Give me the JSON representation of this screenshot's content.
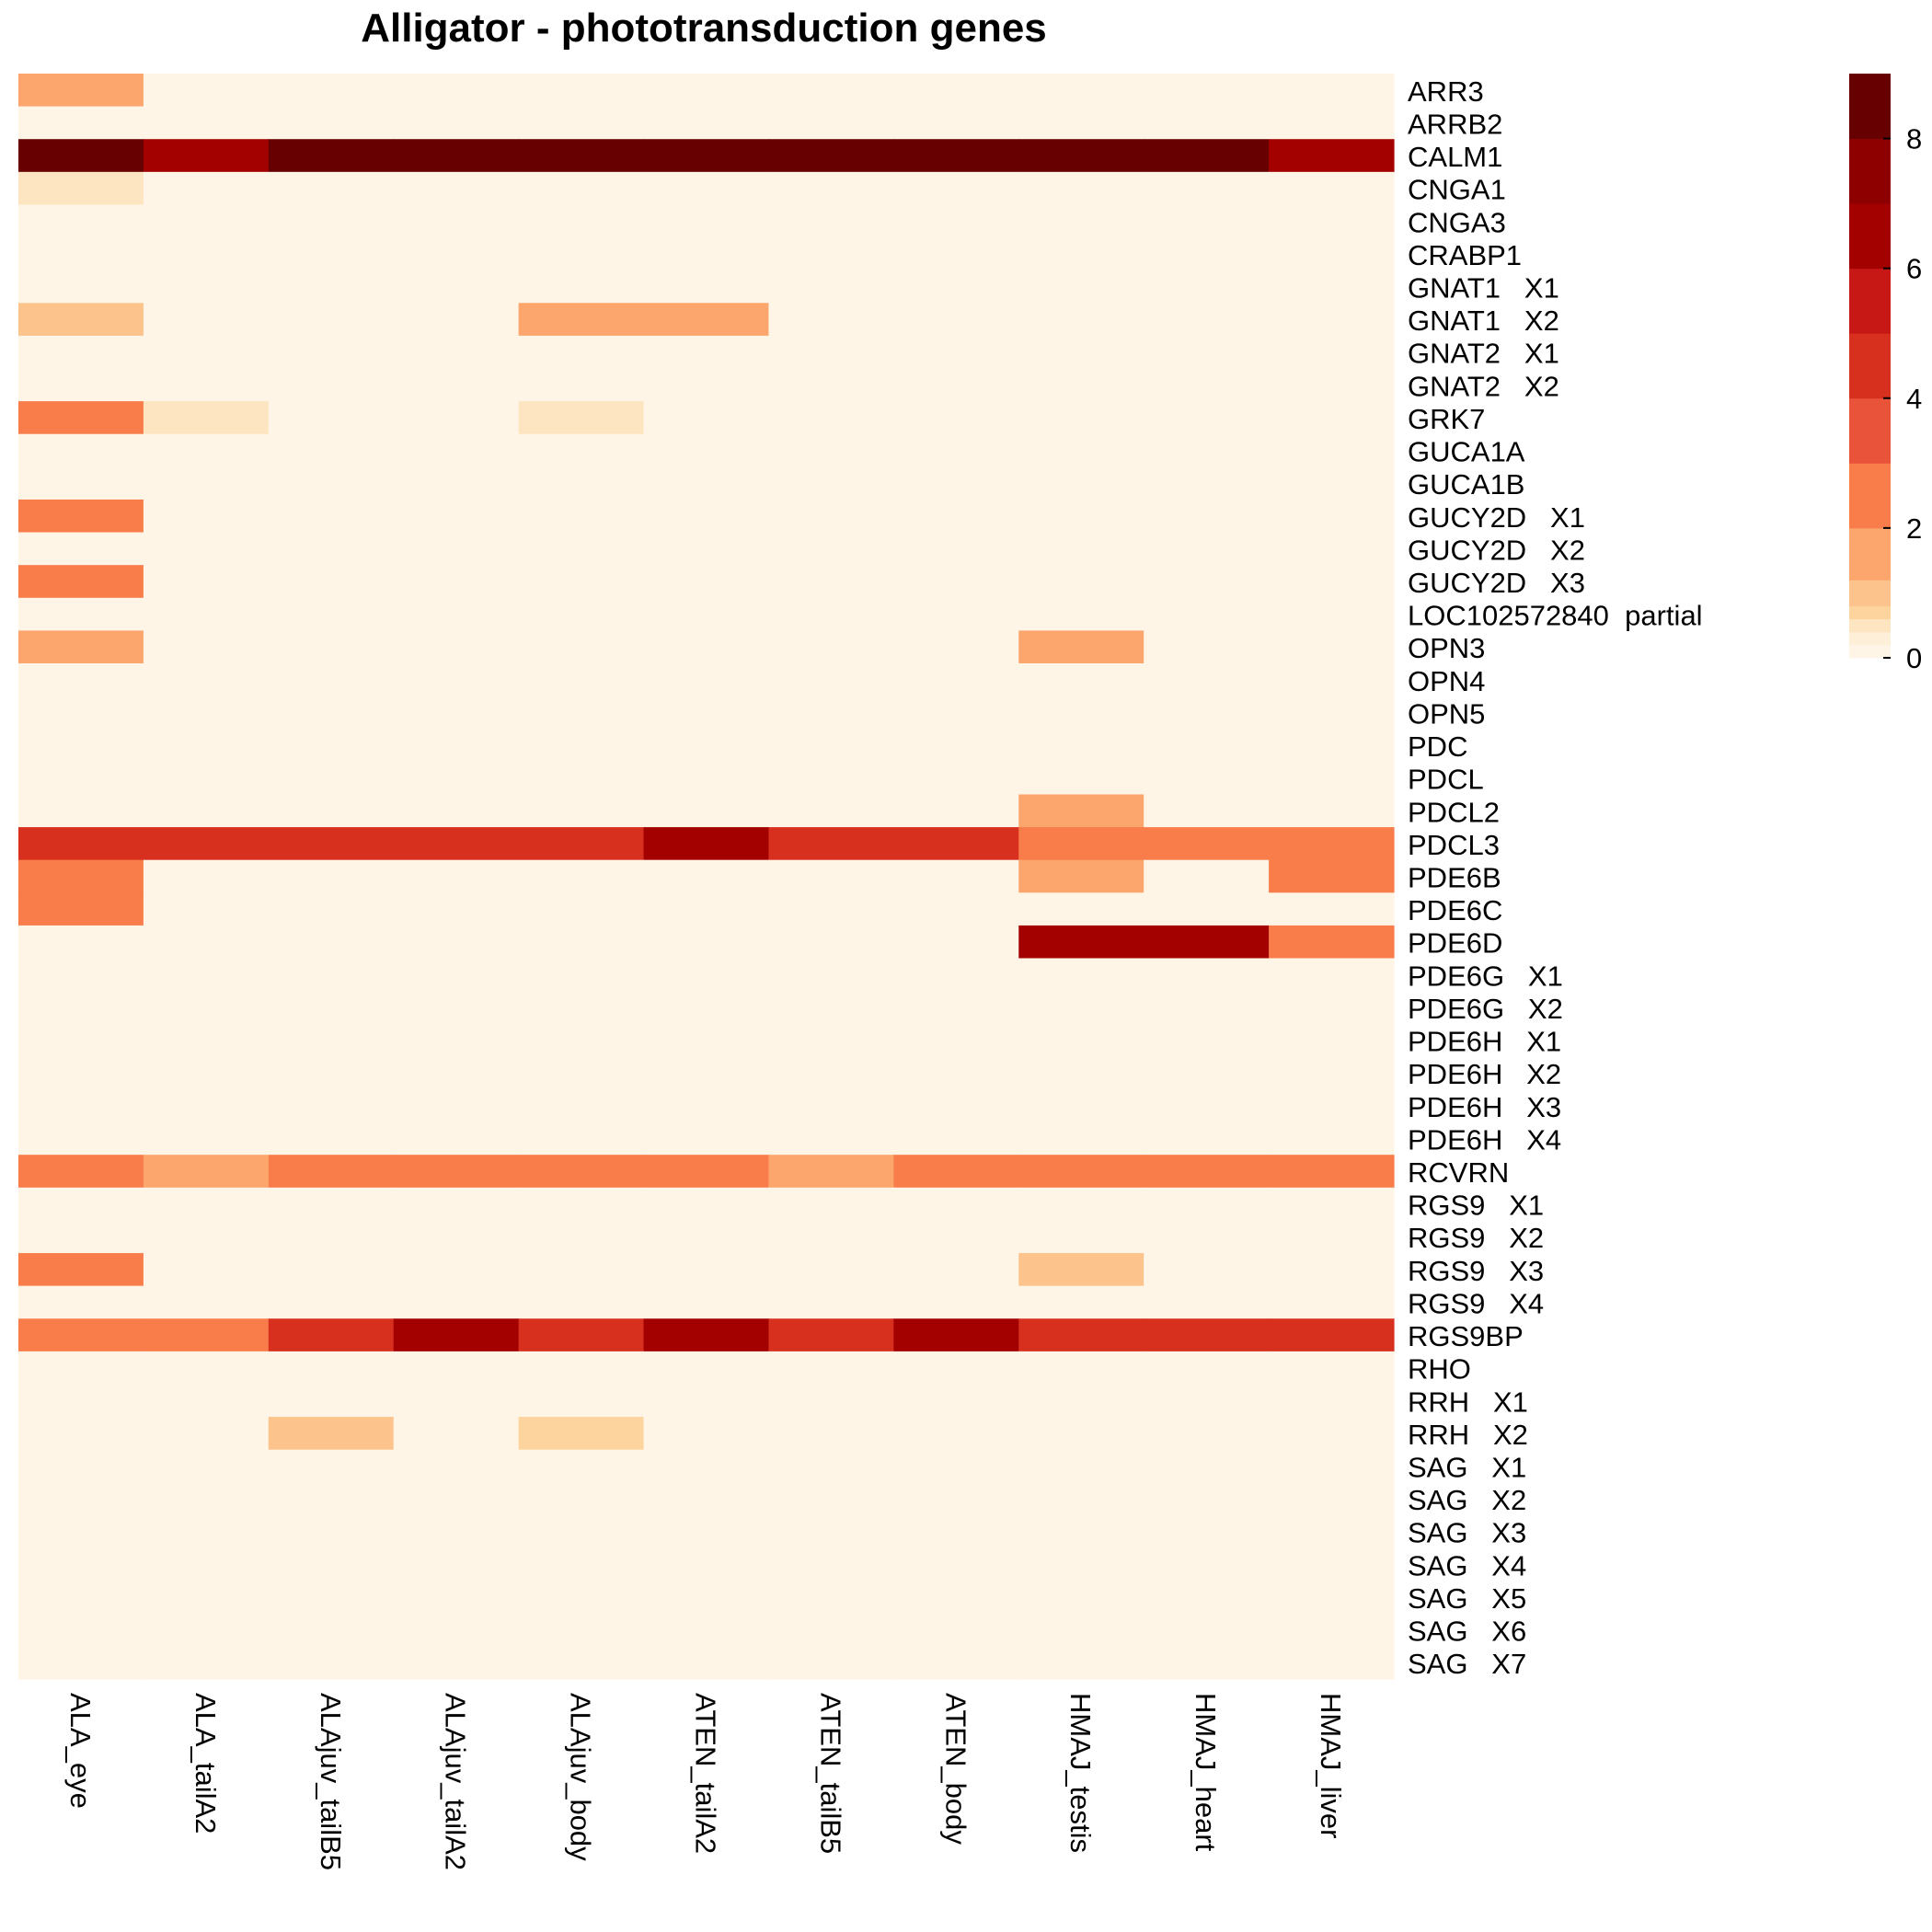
{
  "chart_data": {
    "type": "heatmap",
    "title": "Alligator - phototransduction genes",
    "columns": [
      "ALA_eye",
      "ALA_tailA2",
      "ALAjuv_tailB5",
      "ALAjuv_tailA2",
      "ALAjuv_body",
      "ATEN_tailA2",
      "ATEN_tailB5",
      "ATEN_body",
      "HMAJ_testis",
      "HMAJ_heart",
      "HMAJ_liver"
    ],
    "rows": [
      "ARR3",
      "ARRB2",
      "CALM1",
      "CNGA1",
      "CNGA3",
      "CRABP1",
      "GNAT1   X1",
      "GNAT1   X2",
      "GNAT2   X1",
      "GNAT2   X2",
      "GRK7",
      "GUCA1A",
      "GUCA1B",
      "GUCY2D   X1",
      "GUCY2D   X2",
      "GUCY2D   X3",
      "LOC102572840  partial",
      "OPN3",
      "OPN4",
      "OPN5",
      "PDC",
      "PDCL",
      "PDCL2",
      "PDCL3",
      "PDE6B",
      "PDE6C",
      "PDE6D",
      "PDE6G   X1",
      "PDE6G   X2",
      "PDE6H   X1",
      "PDE6H   X2",
      "PDE6H   X3",
      "PDE6H   X4",
      "RCVRN",
      "RGS9   X1",
      "RGS9   X2",
      "RGS9   X3",
      "RGS9   X4",
      "RGS9BP",
      "RHO",
      "RRH   X1",
      "RRH   X2",
      "SAG   X1",
      "SAG   X2",
      "SAG   X3",
      "SAG   X4",
      "SAG   X5",
      "SAG   X6",
      "SAG   X7"
    ],
    "values": [
      [
        1.5,
        0,
        0,
        0,
        0,
        0,
        0,
        0,
        0,
        0,
        0
      ],
      [
        0,
        0,
        0,
        0,
        0,
        0,
        0,
        0,
        0,
        0,
        0
      ],
      [
        8.5,
        6.5,
        8.5,
        8.5,
        8.5,
        8.5,
        8.5,
        8.5,
        8.5,
        8.5,
        6.5
      ],
      [
        0.4,
        0,
        0,
        0,
        0,
        0,
        0,
        0,
        0,
        0,
        0
      ],
      [
        0,
        0,
        0,
        0,
        0,
        0,
        0,
        0,
        0,
        0,
        0
      ],
      [
        0,
        0,
        0,
        0,
        0,
        0,
        0,
        0,
        0,
        0,
        0
      ],
      [
        0,
        0,
        0,
        0,
        0,
        0,
        0,
        0,
        0,
        0,
        0
      ],
      [
        1.0,
        0,
        0,
        0,
        1.5,
        1.5,
        0,
        0,
        0,
        0,
        0
      ],
      [
        0,
        0,
        0,
        0,
        0,
        0,
        0,
        0,
        0,
        0,
        0
      ],
      [
        0,
        0,
        0,
        0,
        0,
        0,
        0,
        0,
        0,
        0,
        0
      ],
      [
        2.5,
        0.4,
        0,
        0,
        0.4,
        0,
        0,
        0,
        0,
        0,
        0
      ],
      [
        0,
        0,
        0,
        0,
        0,
        0,
        0,
        0,
        0,
        0,
        0
      ],
      [
        0,
        0,
        0,
        0,
        0,
        0,
        0,
        0,
        0,
        0,
        0
      ],
      [
        2.5,
        0,
        0,
        0,
        0,
        0,
        0,
        0,
        0,
        0,
        0
      ],
      [
        0,
        0,
        0,
        0,
        0,
        0,
        0,
        0,
        0,
        0,
        0
      ],
      [
        2.5,
        0,
        0,
        0,
        0,
        0,
        0,
        0,
        0,
        0,
        0
      ],
      [
        0,
        0,
        0,
        0,
        0,
        0,
        0,
        0,
        0,
        0,
        0
      ],
      [
        1.5,
        0,
        0,
        0,
        0,
        0,
        0,
        0,
        1.5,
        0,
        0
      ],
      [
        0,
        0,
        0,
        0,
        0,
        0,
        0,
        0,
        0,
        0,
        0
      ],
      [
        0,
        0,
        0,
        0,
        0,
        0,
        0,
        0,
        0,
        0,
        0
      ],
      [
        0,
        0,
        0,
        0,
        0,
        0,
        0,
        0,
        0,
        0,
        0
      ],
      [
        0,
        0,
        0,
        0,
        0,
        0,
        0,
        0,
        0,
        0,
        0
      ],
      [
        0,
        0,
        0,
        0,
        0,
        0,
        0,
        0,
        1.5,
        0,
        0
      ],
      [
        4.5,
        4.5,
        4.5,
        4.5,
        4.5,
        6.5,
        4.5,
        4.5,
        2.5,
        2.5,
        2.5
      ],
      [
        2.5,
        0,
        0,
        0,
        0,
        0,
        0,
        0,
        1.5,
        0,
        2.5
      ],
      [
        2.5,
        0,
        0,
        0,
        0,
        0,
        0,
        0,
        0,
        0,
        0
      ],
      [
        0,
        0,
        0,
        0,
        0,
        0,
        0,
        0,
        6.5,
        6.5,
        2.5
      ],
      [
        0,
        0,
        0,
        0,
        0,
        0,
        0,
        0,
        0,
        0,
        0
      ],
      [
        0,
        0,
        0,
        0,
        0,
        0,
        0,
        0,
        0,
        0,
        0
      ],
      [
        0,
        0,
        0,
        0,
        0,
        0,
        0,
        0,
        0,
        0,
        0
      ],
      [
        0,
        0,
        0,
        0,
        0,
        0,
        0,
        0,
        0,
        0,
        0
      ],
      [
        0,
        0,
        0,
        0,
        0,
        0,
        0,
        0,
        0,
        0,
        0
      ],
      [
        0,
        0,
        0,
        0,
        0,
        0,
        0,
        0,
        0,
        0,
        0
      ],
      [
        2.5,
        1.5,
        2.5,
        2.5,
        2.5,
        2.5,
        1.5,
        2.5,
        2.5,
        2.5,
        2.5
      ],
      [
        0,
        0,
        0,
        0,
        0,
        0,
        0,
        0,
        0,
        0,
        0
      ],
      [
        0,
        0,
        0,
        0,
        0,
        0,
        0,
        0,
        0,
        0,
        0
      ],
      [
        2.5,
        0,
        0,
        0,
        0,
        0,
        0,
        0,
        1.0,
        0,
        0
      ],
      [
        0,
        0,
        0,
        0,
        0,
        0,
        0,
        0,
        0,
        0,
        0
      ],
      [
        2.5,
        2.5,
        4.5,
        6.5,
        4.5,
        6.5,
        4.5,
        6.5,
        4.5,
        4.5,
        4.5
      ],
      [
        0,
        0,
        0,
        0,
        0,
        0,
        0,
        0,
        0,
        0,
        0
      ],
      [
        0,
        0,
        0,
        0,
        0,
        0,
        0,
        0,
        0,
        0,
        0
      ],
      [
        0,
        0,
        1.0,
        0,
        0.6,
        0,
        0,
        0,
        0,
        0,
        0
      ],
      [
        0,
        0,
        0,
        0,
        0,
        0,
        0,
        0,
        0,
        0,
        0
      ],
      [
        0,
        0,
        0,
        0,
        0,
        0,
        0,
        0,
        0,
        0,
        0
      ],
      [
        0,
        0,
        0,
        0,
        0,
        0,
        0,
        0,
        0,
        0,
        0
      ],
      [
        0,
        0,
        0,
        0,
        0,
        0,
        0,
        0,
        0,
        0,
        0
      ],
      [
        0,
        0,
        0,
        0,
        0,
        0,
        0,
        0,
        0,
        0,
        0
      ],
      [
        0,
        0,
        0,
        0,
        0,
        0,
        0,
        0,
        0,
        0,
        0
      ],
      [
        0,
        0,
        0,
        0,
        0,
        0,
        0,
        0,
        0,
        0,
        0
      ]
    ],
    "color_scale": {
      "breaks": [
        0,
        0.2,
        0.4,
        0.6,
        0.8,
        1.2,
        2,
        3,
        4,
        5,
        6,
        7,
        8,
        9
      ],
      "colors": [
        "#fff5e7",
        "#feefd9",
        "#fee5c1",
        "#fdd49e",
        "#fdc38c",
        "#fca66e",
        "#f87d4b",
        "#e95339",
        "#d7301f",
        "#c71816",
        "#a30000",
        "#8e0000",
        "#670000"
      ],
      "range": [
        0,
        9
      ],
      "ticks": [
        0,
        2,
        4,
        6,
        8
      ],
      "tick_labels": [
        "0",
        "2",
        "4",
        "6",
        "8"
      ]
    },
    "legend_position": "top-right"
  }
}
